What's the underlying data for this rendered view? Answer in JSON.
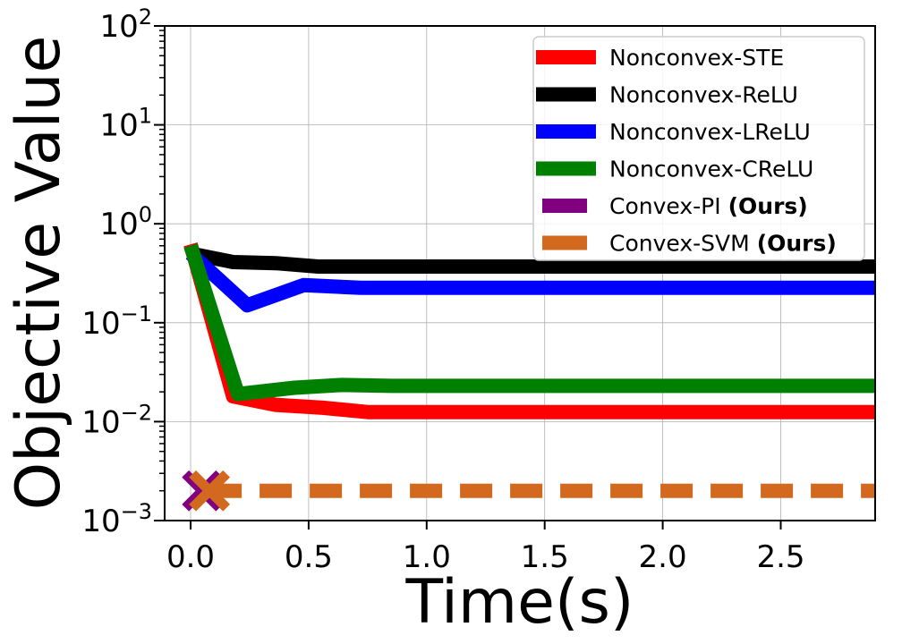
{
  "chart_data": {
    "type": "line",
    "xlabel": "Time(s)",
    "ylabel": "Objective Value",
    "xlim": [
      -0.11,
      2.9
    ],
    "ylim": [
      0.001,
      100
    ],
    "yscale": "log",
    "grid": true,
    "legend_position": "top-right",
    "x_ticks": [
      {
        "value": 0.0,
        "label": "0.0"
      },
      {
        "value": 0.5,
        "label": "0.5"
      },
      {
        "value": 1.0,
        "label": "1.0"
      },
      {
        "value": 1.5,
        "label": "1.5"
      },
      {
        "value": 2.0,
        "label": "2.0"
      },
      {
        "value": 2.5,
        "label": "2.5"
      }
    ],
    "y_ticks": [
      {
        "value": 0.001,
        "base": "10",
        "exp": "−3"
      },
      {
        "value": 0.01,
        "base": "10",
        "exp": "−2"
      },
      {
        "value": 0.1,
        "base": "10",
        "exp": "−1"
      },
      {
        "value": 1,
        "base": "10",
        "exp": "0"
      },
      {
        "value": 10,
        "base": "10",
        "exp": "1"
      },
      {
        "value": 100,
        "base": "10",
        "exp": "2"
      }
    ],
    "series": [
      {
        "name": "Nonconvex-STE",
        "color": "#ff0000",
        "style": "solid",
        "x": [
          0.0,
          0.18,
          0.36,
          0.56,
          0.75,
          1.0,
          1.5,
          2.0,
          2.5,
          2.9
        ],
        "y": [
          0.62,
          0.018,
          0.0148,
          0.0138,
          0.0125,
          0.0125,
          0.0125,
          0.0125,
          0.0125,
          0.0125
        ]
      },
      {
        "name": "Nonconvex-ReLU",
        "color": "#000000",
        "style": "solid",
        "x": [
          0.0,
          0.18,
          0.36,
          0.54,
          0.75,
          1.0,
          1.5,
          2.0,
          2.5,
          2.9
        ],
        "y": [
          0.5,
          0.41,
          0.4,
          0.37,
          0.37,
          0.37,
          0.37,
          0.37,
          0.37,
          0.37
        ]
      },
      {
        "name": "Nonconvex-LReLU",
        "color": "#0000ff",
        "style": "solid",
        "x": [
          0.0,
          0.24,
          0.48,
          0.72,
          1.0,
          1.5,
          2.0,
          2.5,
          2.9
        ],
        "y": [
          0.5,
          0.15,
          0.24,
          0.225,
          0.225,
          0.225,
          0.225,
          0.225,
          0.225
        ]
      },
      {
        "name": "Nonconvex-CReLU",
        "color": "#008000",
        "style": "solid",
        "x": [
          0.0,
          0.2,
          0.44,
          0.64,
          0.85,
          1.0,
          1.5,
          2.0,
          2.5,
          2.9
        ],
        "y": [
          0.6,
          0.019,
          0.022,
          0.0235,
          0.023,
          0.023,
          0.023,
          0.023,
          0.023,
          0.023
        ]
      },
      {
        "name": "Convex-PI",
        "name_suffix": "(Ours)",
        "color": "#800080",
        "style": "dashed",
        "x": [
          0.05
        ],
        "y": [
          0.002
        ]
      },
      {
        "name": "Convex-SVM",
        "name_suffix": "(Ours)",
        "color": "#d2691e",
        "style": "dashed",
        "x": [
          0.08,
          2.9
        ],
        "y": [
          0.002,
          0.002
        ]
      }
    ]
  }
}
